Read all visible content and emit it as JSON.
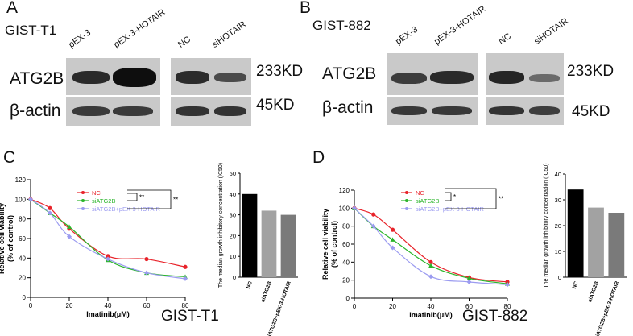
{
  "panels": {
    "A": {
      "letter": "A",
      "cell_line": "GIST-T1",
      "lanes_left": [
        "pEX-3",
        "pEX-3-HOTAIR"
      ],
      "lanes_right": [
        "NC",
        "siHOTAIR"
      ],
      "rows": [
        {
          "label": "ATG2B",
          "size": "233KD"
        },
        {
          "label": "β-actin",
          "size": "45KD"
        }
      ]
    },
    "B": {
      "letter": "B",
      "cell_line": "GIST-882",
      "lanes_left": [
        "pEX-3",
        "pEX-3-HOTAIR"
      ],
      "lanes_right": [
        "NC",
        "siHOTAIR"
      ],
      "rows": [
        {
          "label": "ATG2B",
          "size": "233KD"
        },
        {
          "label": "β-actin",
          "size": "45KD"
        }
      ]
    },
    "C": {
      "letter": "C",
      "cell_line": "GIST-T1"
    },
    "D": {
      "letter": "D",
      "cell_line": "GIST-882"
    }
  },
  "colors": {
    "NC": "#e8232a",
    "siATG2B": "#2bb52b",
    "siATG2B+pEX-3-HOTAIR": "#9b9bf0",
    "bar_NC": "#000000",
    "bar_siATG2B": "#a2a2a2",
    "bar_combo": "#7a7a7a"
  },
  "chart_data": [
    {
      "type": "line",
      "panel": "C",
      "title": "",
      "xlabel": "Imatinib(μM)",
      "ylabel": "Relative cell viability (% of control)",
      "xlim": [
        0,
        80
      ],
      "ylim": [
        0,
        120
      ],
      "xticks": [
        0,
        20,
        40,
        60,
        80
      ],
      "yticks": [
        0,
        20,
        40,
        60,
        80,
        100,
        120
      ],
      "legend_position": "top-center",
      "significance": [
        "**",
        "**"
      ],
      "x": [
        0,
        10,
        20,
        40,
        60,
        80
      ],
      "series": [
        {
          "name": "NC",
          "values": [
            100,
            91,
            70,
            42,
            39,
            31
          ]
        },
        {
          "name": "siATG2B",
          "values": [
            100,
            86,
            72,
            38,
            25,
            21
          ]
        },
        {
          "name": "siATG2B+pEX-3-HOTAIR",
          "values": [
            100,
            86,
            62,
            39,
            25,
            19
          ]
        }
      ]
    },
    {
      "type": "bar",
      "panel": "C",
      "title": "",
      "ylabel": "The median growth inhibitory concentration (IC50)",
      "ylim": [
        0,
        50
      ],
      "yticks": [
        0,
        10,
        20,
        30,
        40,
        50
      ],
      "categories": [
        "NC",
        "siATG2B",
        "siATG2B+pEX-3-HOTAIR"
      ],
      "values": [
        40,
        32,
        30
      ]
    },
    {
      "type": "line",
      "panel": "D",
      "title": "",
      "xlabel": "Imatinib(μM)",
      "ylabel": "Relative cell viability (% of control)",
      "xlim": [
        0,
        80
      ],
      "ylim": [
        0,
        120
      ],
      "xticks": [
        0,
        20,
        40,
        60,
        80
      ],
      "yticks": [
        0,
        20,
        40,
        60,
        80,
        100,
        120
      ],
      "legend_position": "top-center",
      "significance": [
        "*",
        "**"
      ],
      "x": [
        0,
        10,
        20,
        40,
        60,
        80
      ],
      "series": [
        {
          "name": "NC",
          "values": [
            100,
            93,
            76,
            40,
            23,
            18
          ]
        },
        {
          "name": "siATG2B",
          "values": [
            100,
            80,
            65,
            36,
            22,
            16
          ]
        },
        {
          "name": "siATG2B+pEX-3-HOTAIR",
          "values": [
            100,
            80,
            56,
            24,
            18,
            15
          ]
        }
      ]
    },
    {
      "type": "bar",
      "panel": "D",
      "title": "",
      "ylabel": "The median growth inhibitory concentration (IC50)",
      "ylim": [
        0,
        40
      ],
      "yticks": [
        0,
        10,
        20,
        30,
        40
      ],
      "categories": [
        "NC",
        "siATG2B",
        "siATG2B+pEX-3-HOTAIR"
      ],
      "values": [
        34,
        27,
        25
      ]
    }
  ]
}
